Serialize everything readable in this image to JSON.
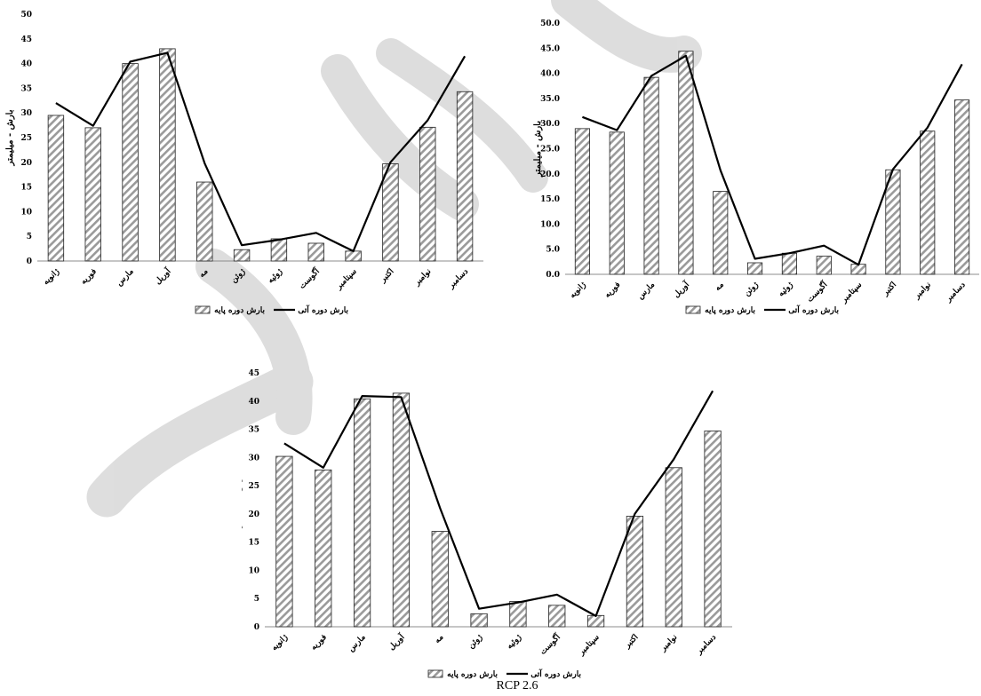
{
  "caption": "RCP 2.6",
  "chart_data": [
    {
      "type": "bar",
      "categories": [
        "ژانویه",
        "فوریه",
        "مارس",
        "آوریل",
        "مه",
        "ژوئن",
        "ژوئیه",
        "آگوست",
        "سپتامبر",
        "اکتبر",
        "نوامبر",
        "دسامبر"
      ],
      "ylabel": "بارش - میلیمتر",
      "ylim": [
        0,
        50
      ],
      "ytick_step": 5,
      "ytick_decimals": 0,
      "legend_placement": "bottom",
      "series": [
        {
          "name": "بارش دوره پایه",
          "kind": "bar",
          "values": [
            29.5,
            27.0,
            40.0,
            43.0,
            16.0,
            2.3,
            4.5,
            3.6,
            2.0,
            19.7,
            27.1,
            34.3
          ]
        },
        {
          "name": "بارش دوره آتی",
          "kind": "line",
          "values": [
            32.0,
            27.4,
            40.4,
            42.2,
            19.8,
            3.2,
            4.3,
            5.7,
            2.0,
            20.0,
            28.5,
            41.5
          ]
        }
      ]
    },
    {
      "type": "bar",
      "categories": [
        "ژانویه",
        "فوریه",
        "مارس",
        "آوریل",
        "مه",
        "ژوئن",
        "ژوئیه",
        "آگوست",
        "سپتامبر",
        "اکتبر",
        "نوامبر",
        "دسامبر"
      ],
      "ylabel": "بارش - میلیمتر",
      "ylim": [
        0,
        50
      ],
      "ytick_step": 5,
      "ytick_decimals": 1,
      "legend_placement": "bottom",
      "series": [
        {
          "name": "بارش دوره پایه",
          "kind": "bar",
          "values": [
            29.0,
            28.3,
            39.2,
            44.4,
            16.5,
            2.3,
            4.2,
            3.6,
            2.0,
            20.8,
            28.5,
            34.7
          ]
        },
        {
          "name": "بارش دوره آتی",
          "kind": "line",
          "values": [
            31.3,
            28.7,
            39.5,
            43.5,
            20.7,
            3.1,
            4.2,
            5.7,
            1.9,
            20.9,
            29.2,
            41.8
          ]
        }
      ]
    },
    {
      "type": "bar",
      "categories": [
        "ژانویه",
        "فوریه",
        "مارس",
        "آوریل",
        "مه",
        "ژوئن",
        "ژوئیه",
        "آگوست",
        "سپتامبر",
        "اکتبر",
        "نوامبر",
        "دسامبر"
      ],
      "ylabel": "بارش - میلیمتر",
      "ylim": [
        0,
        45
      ],
      "ytick_step": 5,
      "ytick_decimals": 0,
      "legend_placement": "bottom",
      "series": [
        {
          "name": "بارش دوره پایه",
          "kind": "bar",
          "values": [
            30.2,
            27.8,
            40.4,
            41.4,
            16.9,
            2.3,
            4.5,
            3.8,
            2.0,
            19.6,
            28.2,
            34.7
          ]
        },
        {
          "name": "بارش دوره آتی",
          "kind": "line",
          "values": [
            32.5,
            28.2,
            40.9,
            40.7,
            21.0,
            3.2,
            4.3,
            5.7,
            1.9,
            20.0,
            29.7,
            41.8
          ]
        }
      ]
    }
  ]
}
